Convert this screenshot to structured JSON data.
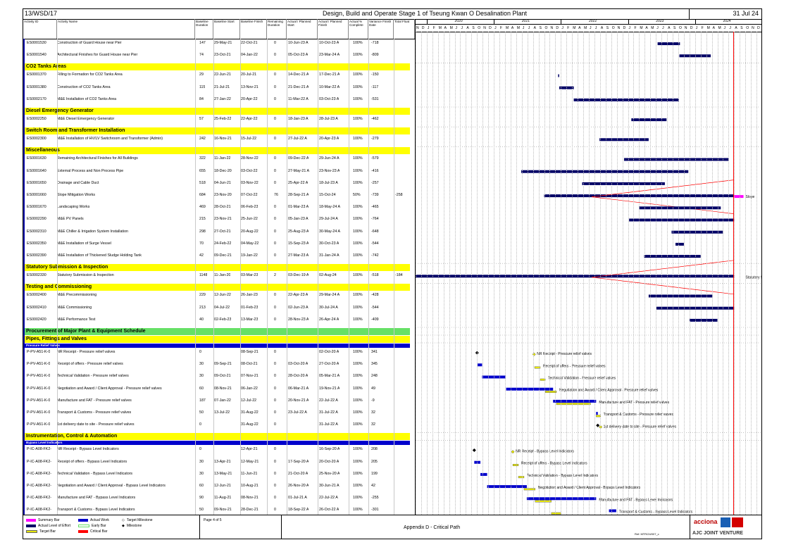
{
  "header": {
    "project_code": "13/WSD/17",
    "title": "Design, Build and Operate Stage 1 of Tseung Kwan O Desalination Plant",
    "data_date": "31 Jul 24"
  },
  "columns": [
    {
      "key": "id",
      "label": "Activity ID"
    },
    {
      "key": "name",
      "label": "Activity Name"
    },
    {
      "key": "bdur",
      "label": "Baseline Duration"
    },
    {
      "key": "bstart",
      "label": "Baseline Start"
    },
    {
      "key": "bfinish",
      "label": "Baseline Finish"
    },
    {
      "key": "rdur",
      "label": "Remaining Duration"
    },
    {
      "key": "astart",
      "label": "Actual / Planned Start"
    },
    {
      "key": "afinish",
      "label": "Actual / Planned Finish"
    },
    {
      "key": "pct",
      "label": "Actual % Complete"
    },
    {
      "key": "var",
      "label": "Variance Finish Date"
    },
    {
      "key": "tf",
      "label": "Total Float"
    }
  ],
  "timeline": {
    "years": [
      "2020",
      "2021",
      "2022",
      "2023",
      "2024"
    ],
    "months": [
      "N",
      "D",
      "J",
      "F",
      "M",
      "A",
      "M",
      "J",
      "J",
      "A",
      "S",
      "O",
      "N",
      "D",
      "J",
      "F",
      "M",
      "A",
      "M",
      "J",
      "J",
      "A",
      "S",
      "O",
      "N",
      "D",
      "J",
      "F",
      "M",
      "A",
      "M",
      "J",
      "J",
      "A",
      "S",
      "O",
      "N",
      "D",
      "J",
      "F",
      "M",
      "A",
      "M",
      "J",
      "J",
      "A",
      "S",
      "O",
      "N",
      "D",
      "J",
      "F",
      "M",
      "A",
      "M",
      "J",
      "J",
      "A",
      "S",
      "O",
      "N",
      "D"
    ]
  },
  "rows": [
    {
      "type": "act",
      "id": "ES0001530",
      "name": "Construction of Guard House near Pier",
      "bdur": "147",
      "bstart": "29-May-21",
      "bfinish": "22-Oct-21",
      "rdur": "0",
      "astart": "10-Jun-23 A",
      "afinish": "10-Oct-23 A",
      "pct": "100%",
      "var": "-718",
      "tf": "",
      "bar": [
        43.3,
        47.3
      ],
      "label": ""
    },
    {
      "type": "act",
      "id": "ES0001540",
      "name": "Architectural Finishes for Guard House near Pier",
      "bdur": "74",
      "bstart": "23-Oct-21",
      "bfinish": "04-Jan-22",
      "rdur": "0",
      "astart": "05-Oct-23 A",
      "afinish": "23-Mar-24 A",
      "pct": "100%",
      "var": "-809",
      "tf": "",
      "bar": [
        47.2,
        52.8
      ],
      "label": ""
    },
    {
      "type": "grp",
      "name": "CO2 Tanks Areas"
    },
    {
      "type": "act",
      "id": "ES0001370",
      "name": "Filling to Formation for CO2 Tanks Area",
      "bdur": "29",
      "bstart": "22-Jun-21",
      "bfinish": "20-Jul-21",
      "rdur": "0",
      "astart": "14-Dec-21 A",
      "afinish": "17-Dec-21 A",
      "pct": "100%",
      "var": "-150",
      "tf": "",
      "bar": [
        25.5,
        25.6
      ],
      "label": ""
    },
    {
      "type": "act",
      "id": "ES0001380",
      "name": "Construction of CO2 Tanks Area",
      "bdur": "115",
      "bstart": "21-Jul-21",
      "bfinish": "13-Nov-21",
      "rdur": "0",
      "astart": "21-Dec-21 A",
      "afinish": "10-Mar-22 A",
      "pct": "100%",
      "var": "-117",
      "tf": "",
      "bar": [
        25.7,
        28.3
      ],
      "label": ""
    },
    {
      "type": "act",
      "id": "ES0002170",
      "name": "M&E Installation of CO2 Tanks Area",
      "bdur": "84",
      "bstart": "27-Jan-22",
      "bfinish": "20-Apr-22",
      "rdur": "0",
      "astart": "11-Mar-22 A",
      "afinish": "03-Oct-23 A",
      "pct": "100%",
      "var": "-531",
      "tf": "",
      "bar": [
        28.3,
        47.1
      ],
      "label": ""
    },
    {
      "type": "grp",
      "name": "Diesel Emergency Generator"
    },
    {
      "type": "act",
      "id": "ES0002250",
      "name": "M&E Diesel Emergency Generator",
      "bdur": "57",
      "bstart": "25-Feb-22",
      "bfinish": "22-Apr-22",
      "rdur": "0",
      "astart": "18-Jan-23 A",
      "afinish": "28-Jul-23 A",
      "pct": "100%",
      "var": "-462",
      "tf": "",
      "bar": [
        38.6,
        44.9
      ],
      "label": ""
    },
    {
      "type": "grp",
      "name": "Switch Room and Transformer Installation"
    },
    {
      "type": "act",
      "id": "ES0002300",
      "name": "M&E Installation of HV/LV Switchroom and Transformer (Admin)",
      "bdur": "242",
      "bstart": "16-Nov-21",
      "bfinish": "15-Jul-22",
      "rdur": "0",
      "astart": "27-Jul-22 A",
      "afinish": "20-Apr-23 A",
      "pct": "100%",
      "var": "-279",
      "tf": "",
      "bar": [
        32.9,
        41.7
      ],
      "label": ""
    },
    {
      "type": "grp",
      "name": "Miscellaneous"
    },
    {
      "type": "act",
      "id": "ES0001630",
      "name": "Remaining Architectural Finishes for All Buildings",
      "bdur": "322",
      "bstart": "11-Jan-22",
      "bfinish": "28-Nov-22",
      "rdur": "0",
      "astart": "09-Dec-22 A",
      "afinish": "29-Jun-24 A",
      "pct": "100%",
      "var": "-579",
      "tf": "",
      "bar": [
        37.3,
        56.0
      ],
      "label": ""
    },
    {
      "type": "act",
      "id": "ES0001640",
      "name": "External Process and Non Process Pipe",
      "bdur": "655",
      "bstart": "18-Dec-20",
      "bfinish": "03-Oct-22",
      "rdur": "0",
      "astart": "27-May-21 A",
      "afinish": "23-Nov-23 A",
      "pct": "100%",
      "var": "-416",
      "tf": "",
      "bar": [
        18.9,
        48.8
      ],
      "label": ""
    },
    {
      "type": "act",
      "id": "ES0001650",
      "name": "Drainage and Cable Duct",
      "bdur": "518",
      "bstart": "04-Jun-21",
      "bfinish": "03-Nov-22",
      "rdur": "0",
      "astart": "25-Apr-22 A",
      "afinish": "18-Jul-23 A",
      "pct": "100%",
      "var": "-257",
      "tf": "",
      "bar": [
        29.8,
        44.6
      ],
      "label": ""
    },
    {
      "type": "act",
      "id": "ES0001660",
      "name": "Slope Mitigation Works",
      "bdur": "684",
      "bstart": "23-Nov-20",
      "bfinish": "07-Oct-22",
      "rdur": "76",
      "astart": "28-Sep-21 A",
      "afinish": "15-Oct-24",
      "pct": "50%",
      "var": "-739",
      "tf": "-258",
      "bar": [
        23.0,
        57.0
      ],
      "label": "Slope",
      "critical": true
    },
    {
      "type": "act",
      "id": "ES0001670",
      "name": "Landscaping Works",
      "bdur": "469",
      "bstart": "28-Oct-21",
      "bfinish": "06-Feb-23",
      "rdur": "0",
      "astart": "01-Mar-23 A",
      "afinish": "18-May-24 A",
      "pct": "100%",
      "var": "-465",
      "tf": "",
      "bar": [
        40.0,
        54.6
      ],
      "label": ""
    },
    {
      "type": "act",
      "id": "ES0002290",
      "name": "M&E PV Panels",
      "bdur": "215",
      "bstart": "23-Nov-21",
      "bfinish": "25-Jun-22",
      "rdur": "0",
      "astart": "05-Jan-23 A",
      "afinish": "29-Jul-24 A",
      "pct": "100%",
      "var": "-764",
      "tf": "",
      "bar": [
        38.2,
        57.0
      ],
      "label": ""
    },
    {
      "type": "act",
      "id": "ES0002310",
      "name": "M&E Chiller & Irrigation System Installation",
      "bdur": "298",
      "bstart": "27-Oct-21",
      "bfinish": "20-Aug-22",
      "rdur": "0",
      "astart": "25-Aug-23 A",
      "afinish": "30-May-24 A",
      "pct": "100%",
      "var": "-648",
      "tf": "",
      "bar": [
        45.8,
        55.0
      ],
      "label": ""
    },
    {
      "type": "act",
      "id": "ES0002350",
      "name": "M&E Installation of Surge Vessel",
      "bdur": "70",
      "bstart": "24-Feb-22",
      "bfinish": "04-May-22",
      "rdur": "0",
      "astart": "15-Sep-23 A",
      "afinish": "30-Oct-23 A",
      "pct": "100%",
      "var": "-544",
      "tf": "",
      "bar": [
        46.5,
        48.0
      ],
      "label": ""
    },
    {
      "type": "act",
      "id": "ES0002390",
      "name": "M&E Installation of Thickened Sludge Holding Tank",
      "bdur": "42",
      "bstart": "09-Dec-21",
      "bfinish": "19-Jan-22",
      "rdur": "0",
      "astart": "27-Mar-23 A",
      "afinish": "31-Jan-24 A",
      "pct": "100%",
      "var": "-742",
      "tf": "",
      "bar": [
        40.9,
        51.0
      ],
      "label": ""
    },
    {
      "type": "grp",
      "name": "Statutory Submission & Inspection"
    },
    {
      "type": "act",
      "id": "ES0002330",
      "name": "Statutory Submission & Inspection",
      "bdur": "1148",
      "bstart": "11-Jan-20",
      "bfinish": "03-Mar-23",
      "rdur": "2",
      "astart": "03-Dec-19 A",
      "afinish": "02-Aug-24",
      "pct": "100%",
      "var": "-518",
      "tf": "-184",
      "bar": [
        0.0,
        57.0
      ],
      "label": "Statutory Sub",
      "critical": true
    },
    {
      "type": "grp",
      "name": "Testing and Commissioning"
    },
    {
      "type": "act",
      "id": "ES0002400",
      "name": "M&E Precommissioning",
      "bdur": "229",
      "bstart": "12-Jun-22",
      "bfinish": "26-Jan-23",
      "rdur": "0",
      "astart": "22-Apr-23 A",
      "afinish": "29-Mar-24 A",
      "pct": "100%",
      "var": "-428",
      "tf": "",
      "bar": [
        41.7,
        53.1
      ],
      "label": ""
    },
    {
      "type": "act",
      "id": "ES0002410",
      "name": "M&E Commissioning",
      "bdur": "213",
      "bstart": "04-Jul-22",
      "bfinish": "01-Feb-23",
      "rdur": "0",
      "astart": "02-Jun-23 A",
      "afinish": "30-Jul-24 A",
      "pct": "100%",
      "var": "-544",
      "tf": "",
      "bar": [
        43.1,
        57.0
      ],
      "label": ""
    },
    {
      "type": "act",
      "id": "ES0002420",
      "name": "M&E Performance Test",
      "bdur": "40",
      "bstart": "02-Feb-23",
      "bfinish": "13-Mar-23",
      "rdur": "0",
      "astart": "28-Nov-23 A",
      "afinish": "26-Apr-24 A",
      "pct": "100%",
      "var": "-409",
      "tf": "",
      "bar": [
        49.0,
        54.0
      ],
      "label": ""
    },
    {
      "type": "grpg",
      "name": "Procurement of Major Plant & Equipment Schedule"
    },
    {
      "type": "grp",
      "name": "Pipes, Fittings and Valves"
    },
    {
      "type": "grpb",
      "name": "Pressure Relief Valves"
    },
    {
      "type": "act",
      "id": "P-PV-A51-K-0",
      "name": "NR Receipt - Pressure relief valves",
      "bdur": "0",
      "bstart": "",
      "bfinish": "08-Sep-21",
      "rdur": "0",
      "astart": "",
      "afinish": "02-Oct-20 A",
      "pct": "100%",
      "var": "341",
      "tf": "",
      "ms": 11.0,
      "tms": 21.2,
      "label": "NR Receipt - Pressure relief valves"
    },
    {
      "type": "act",
      "id": "P-PV-A51-K-0",
      "name": "Receipt of offers - Pressure relief valves",
      "bdur": "30",
      "bstart": "09-Sep-21",
      "bfinish": "08-Oct-21",
      "rdur": "0",
      "astart": "03-Oct-20 A",
      "afinish": "27-Oct-20 A",
      "pct": "100%",
      "var": "345",
      "tf": "",
      "bar": [
        11.1,
        11.9
      ],
      "tbar": [
        21.3,
        22.3
      ],
      "label": "Receipt of offers - Pressure relief valves"
    },
    {
      "type": "act",
      "id": "P-PV-A51-K-0",
      "name": "Technical Validation - Pressure relief valves",
      "bdur": "30",
      "bstart": "09-Oct-21",
      "bfinish": "07-Nov-21",
      "rdur": "0",
      "astart": "28-Oct-20 A",
      "afinish": "05-Mar-21 A",
      "pct": "100%",
      "var": "248",
      "tf": "",
      "bar": [
        11.9,
        16.1
      ],
      "tbar": [
        22.3,
        23.2
      ],
      "label": "Technical Validation - Pressure relief valves"
    },
    {
      "type": "act",
      "id": "P-PV-A51-K-0",
      "name": "Negotiation and Award / Client Approval - Pressure relief valves",
      "bdur": "60",
      "bstart": "08-Nov-21",
      "bfinish": "06-Jan-22",
      "rdur": "0",
      "astart": "06-Mar-21 A",
      "afinish": "19-Nov-21 A",
      "pct": "100%",
      "var": "49",
      "tf": "",
      "bar": [
        16.2,
        24.6
      ],
      "tbar": [
        23.2,
        25.2
      ],
      "label": "Negotiation and Award / Client Approval - Pressure relief valves"
    },
    {
      "type": "act",
      "id": "P-PV-A51-K-0",
      "name": "Manufacture and FAT - Pressure relief valves",
      "bdur": "187",
      "bstart": "07-Jan-22",
      "bfinish": "12-Jul-22",
      "rdur": "0",
      "astart": "20-Nov-21 A",
      "afinish": "22-Jul-22 A",
      "pct": "100%",
      "var": "-9",
      "tf": "",
      "bar": [
        24.6,
        32.3
      ],
      "tbar": [
        25.2,
        31.3
      ],
      "label": "Manufacture and FAT - Pressure relief valves"
    },
    {
      "type": "act",
      "id": "P-PV-A51-K-0",
      "name": "Transport & Customs - Pressure relief valves",
      "bdur": "50",
      "bstart": "13-Jul-22",
      "bfinish": "31-Aug-22",
      "rdur": "0",
      "astart": "23-Jul-22 A",
      "afinish": "31-Jul-22 A",
      "pct": "100%",
      "var": "32",
      "tf": "",
      "bar": [
        32.3,
        32.6
      ],
      "tbar": [
        32.3,
        33.1
      ],
      "label": "Transport & Customs - Pressure relief valves"
    },
    {
      "type": "act",
      "id": "P-PV-A51-K-0",
      "name": "1st delivery date to site - Pressure relief valves",
      "bdur": "0",
      "bstart": "",
      "bfinish": "31-Aug-22",
      "rdur": "0",
      "astart": "",
      "afinish": "31-Jul-22 A",
      "pct": "100%",
      "var": "32",
      "tf": "",
      "ms": 32.6,
      "tms": 33.1,
      "label": "1st delivery date to site - Pressure relief valves"
    },
    {
      "type": "grp",
      "name": "Instrumentation, Control & Automation"
    },
    {
      "type": "grpb",
      "name": "Bypass Level Indicators"
    },
    {
      "type": "act",
      "id": "P-IC-A08-FK2-",
      "name": "NR Receipt - Bypass Level Indicators",
      "bdur": "0",
      "bstart": "",
      "bfinish": "12-Apr-21",
      "rdur": "0",
      "astart": "",
      "afinish": "16-Sep-20 A",
      "pct": "100%",
      "var": "208",
      "tf": "",
      "ms": 10.5,
      "tms": 17.4,
      "label": "NR Receipt - Bypass Level Indicators"
    },
    {
      "type": "act",
      "id": "P-IC-A08-FK2-",
      "name": "Receipt of offers - Bypass Level Indicators",
      "bdur": "30",
      "bstart": "13-Apr-21",
      "bfinish": "12-May-21",
      "rdur": "0",
      "astart": "17-Sep-20 A",
      "afinish": "20-Oct-20 A",
      "pct": "100%",
      "var": "205",
      "tf": "",
      "bar": [
        10.5,
        11.6
      ],
      "tbar": [
        17.4,
        18.4
      ],
      "label": "Receipt of offers - Bypass Level Indicators"
    },
    {
      "type": "act",
      "id": "P-IC-A08-FK2-",
      "name": "Technical Validation - Bypass Level Indicators",
      "bdur": "30",
      "bstart": "13-May-21",
      "bfinish": "11-Jun-21",
      "rdur": "0",
      "astart": "21-Oct-20 A",
      "afinish": "25-Nov-20 A",
      "pct": "100%",
      "var": "199",
      "tf": "",
      "bar": [
        11.6,
        12.8
      ],
      "tbar": [
        18.4,
        19.4
      ],
      "label": "Technical Validation - Bypass Level Indicators"
    },
    {
      "type": "act",
      "id": "P-IC-A08-FK2-",
      "name": "Negotiation and Award / Client Approval - Bypass Level Indicators",
      "bdur": "60",
      "bstart": "12-Jun-21",
      "bfinish": "10-Aug-21",
      "rdur": "0",
      "astart": "26-Nov-20 A",
      "afinish": "30-Jun-21 A",
      "pct": "100%",
      "var": "42",
      "tf": "",
      "bar": [
        12.8,
        19.9
      ],
      "tbar": [
        19.4,
        21.4
      ],
      "label": "Negotiation and Award / Client Approval - Bypass Level Indicators"
    },
    {
      "type": "act",
      "id": "P-IC-A08-FK2-",
      "name": "Manufacture and FAT - Bypass Level Indicators",
      "bdur": "90",
      "bstart": "11-Aug-21",
      "bfinish": "08-Nov-21",
      "rdur": "0",
      "astart": "01-Jul-21 A",
      "afinish": "22-Jul-22 A",
      "pct": "100%",
      "var": "-255",
      "tf": "",
      "bar": [
        19.9,
        32.3
      ],
      "tbar": [
        21.4,
        24.3
      ],
      "label": "Manufacture and FAT - Bypass Level Indicators"
    },
    {
      "type": "act",
      "id": "P-IC-A08-FK2-",
      "name": "Transport & Customs - Bypass Level Indicators",
      "bdur": "50",
      "bstart": "09-Nov-21",
      "bfinish": "28-Dec-21",
      "rdur": "0",
      "astart": "18-Sep-22 A",
      "afinish": "26-Oct-22 A",
      "pct": "100%",
      "var": "-301",
      "tf": "",
      "bar": [
        34.6,
        35.9
      ],
      "tbar": [
        24.3,
        26.0
      ],
      "label": "Transport & Customs - Bypass Level Indicators"
    }
  ],
  "legend": {
    "summary_bar": "Summary Bar",
    "actual_level_of_effort": "Actual Level of Effort",
    "target_bar": "Target Bar",
    "actual_work": "Actual Work",
    "early_bar": "Early Bar",
    "critical_bar": "Critical Bar",
    "target_milestone": "Target Milestone",
    "milestone": "Milestone",
    "page": "Page 4 of 5",
    "appendix": "Appendix D - Critical Path",
    "ref": "Ref: MTR/24/007_c",
    "brand1": "acciona",
    "brand2": "AJC JOINT VENTURE"
  },
  "colors": {
    "actual": "#000066",
    "summary": "#ff00ff",
    "target": "#e6e600",
    "critical": "#ff0000",
    "group": "#ffff00",
    "green": "#66e066",
    "blue": "#0000cc"
  }
}
